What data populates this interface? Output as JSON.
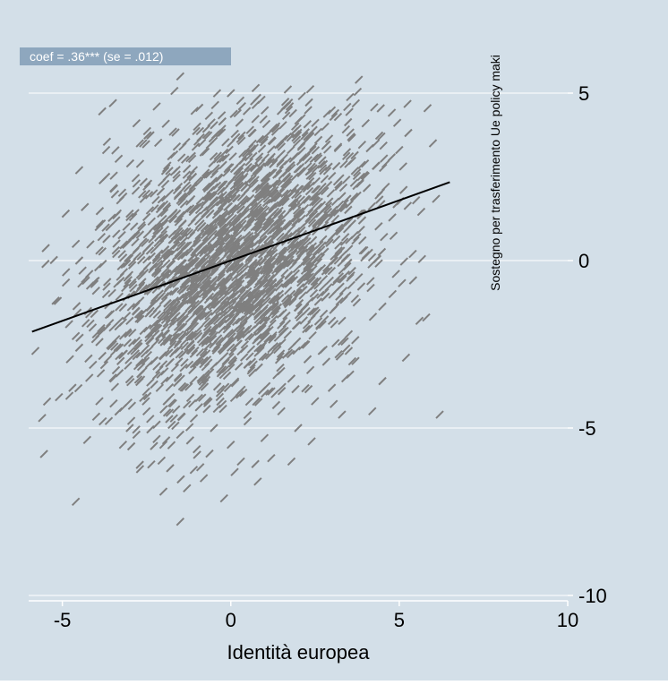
{
  "colors": {
    "background": "#d3dfe8",
    "gridline": "#ffffff",
    "axis": "#ffffff",
    "points": "#7f7f7f",
    "fit_line": "#000000",
    "annotation_box": "#8ea7be",
    "annotation_text": "#ffffff",
    "text": "#000000"
  },
  "chart_data": {
    "type": "scatter",
    "title": "",
    "xlabel": "Identità europea",
    "ylabel": "Sostegno per trasferimento Ue policy maki",
    "xlim": [
      -6,
      10
    ],
    "ylim": [
      -10,
      5
    ],
    "xticks": [
      -5,
      0,
      5,
      10
    ],
    "yticks": [
      -10,
      -5,
      0,
      5
    ],
    "x_tick_labels": [
      "-5",
      "0",
      "5",
      "10"
    ],
    "y_tick_labels": [
      "-10",
      "-5",
      "0",
      "5"
    ],
    "y_axis_position": "right",
    "grid": true,
    "annotation": "coef = .36*** (se = .012)",
    "fit_line": {
      "slope": 0.36,
      "intercept": 0,
      "x_range": [
        -5.9,
        6.5
      ]
    },
    "series": [
      {
        "marker": "dash",
        "points": [
          [
            -4.8,
            -1.9
          ],
          [
            -4.6,
            0.5
          ],
          [
            -4.5,
            -2.6
          ],
          [
            -4.5,
            0.0
          ],
          [
            -4.5,
            2.7
          ],
          [
            -4.4,
            -0.3
          ],
          [
            -4.3,
            -0.6
          ],
          [
            -4.2,
            -1.6
          ],
          [
            -4.2,
            -0.4
          ],
          [
            -4.1,
            -2.0
          ],
          [
            -4.0,
            -2.2
          ],
          [
            -4.0,
            -0.9
          ],
          [
            -3.9,
            -2.2
          ],
          [
            -3.9,
            0.3
          ],
          [
            -3.8,
            -0.1
          ],
          [
            -3.8,
            2.4
          ],
          [
            -3.7,
            2.5
          ],
          [
            -3.7,
            3.3
          ],
          [
            -3.7,
            -1.0
          ],
          [
            -3.6,
            1.0
          ],
          [
            -3.5,
            -2.5
          ],
          [
            -3.5,
            -2.0
          ],
          [
            -3.4,
            1.2
          ],
          [
            -3.4,
            0.8
          ],
          [
            -3.3,
            -2.6
          ],
          [
            -3.3,
            -1.8
          ],
          [
            -3.2,
            -4.4
          ],
          [
            -3.2,
            -1.4
          ],
          [
            -3.1,
            -1.1
          ],
          [
            -3.0,
            1.3
          ],
          [
            -3.0,
            0.6
          ],
          [
            -3.0,
            1.4
          ],
          [
            -2.9,
            1.3
          ],
          [
            -2.8,
            -5.2
          ],
          [
            -2.8,
            -1.3
          ],
          [
            -2.8,
            2.3
          ],
          [
            -2.7,
            3.5
          ],
          [
            -2.6,
            3.5
          ],
          [
            -2.6,
            -4.1
          ],
          [
            -2.6,
            -3.3
          ],
          [
            -2.5,
            1.3
          ],
          [
            -2.4,
            1.5
          ],
          [
            -2.4,
            -1.4
          ],
          [
            -2.3,
            -3.0
          ],
          [
            -2.2,
            -4.9
          ],
          [
            -2.2,
            -1.2
          ],
          [
            -2.2,
            0.9
          ],
          [
            -2.1,
            0.5
          ],
          [
            -2.1,
            -0.5
          ],
          [
            -2.1,
            -0.6
          ],
          [
            -2.0,
            -1.2
          ],
          [
            -2.0,
            -3.1
          ],
          [
            -1.9,
            2.5
          ],
          [
            -1.9,
            -4.2
          ],
          [
            -1.9,
            -4.2
          ],
          [
            -1.8,
            -0.1
          ],
          [
            -1.7,
            -2.3
          ],
          [
            -1.7,
            -2.4
          ],
          [
            -1.6,
            2.1
          ],
          [
            -1.6,
            1.4
          ],
          [
            -1.5,
            0.4
          ],
          [
            -1.5,
            1.8
          ],
          [
            -1.4,
            -1.3
          ],
          [
            -1.4,
            -3.2
          ],
          [
            -1.3,
            -4.3
          ],
          [
            -1.3,
            -0.6
          ],
          [
            -1.2,
            -4.1
          ],
          [
            -1.2,
            -2.0
          ],
          [
            -1.1,
            2.7
          ],
          [
            -1.1,
            0.0
          ],
          [
            -1.0,
            1.6
          ],
          [
            -1.0,
            -3.0
          ],
          [
            -0.9,
            -0.9
          ],
          [
            -0.9,
            1.1
          ],
          [
            -0.8,
            0.1
          ],
          [
            -0.8,
            1.5
          ],
          [
            -0.8,
            -0.8
          ],
          [
            -0.7,
            2.2
          ],
          [
            -0.7,
            -0.7
          ],
          [
            -0.6,
            -0.4
          ],
          [
            -0.6,
            2.1
          ],
          [
            -0.5,
            1.8
          ],
          [
            -0.5,
            -2.1
          ],
          [
            -0.4,
            -2.6
          ],
          [
            -0.4,
            -1.8
          ],
          [
            -0.4,
            3.8
          ],
          [
            -0.3,
            1.2
          ],
          [
            -0.3,
            -0.1
          ],
          [
            -0.2,
            -0.6
          ],
          [
            -0.2,
            1.4
          ],
          [
            -0.1,
            1.4
          ],
          [
            -0.1,
            1.6
          ],
          [
            0.0,
            -3.2
          ],
          [
            0.0,
            -2.6
          ],
          [
            0.1,
            -2.1
          ],
          [
            0.1,
            -4.1
          ],
          [
            0.2,
            0.0
          ],
          [
            0.2,
            2.4
          ],
          [
            0.3,
            0.3
          ],
          [
            0.3,
            0.3
          ],
          [
            0.4,
            2.5
          ],
          [
            0.4,
            0.3
          ],
          [
            0.5,
            -1.5
          ],
          [
            0.5,
            0.7
          ],
          [
            0.6,
            -0.7
          ],
          [
            0.6,
            -0.7
          ],
          [
            0.7,
            1.0
          ],
          [
            0.7,
            2.3
          ],
          [
            0.8,
            -1.9
          ],
          [
            0.8,
            -1.6
          ],
          [
            0.9,
            1.3
          ],
          [
            0.9,
            1.9
          ],
          [
            1.0,
            -0.3
          ],
          [
            1.0,
            3.6
          ],
          [
            1.1,
            0.0
          ],
          [
            1.1,
            -0.2
          ],
          [
            1.2,
            0.6
          ],
          [
            1.2,
            1.0
          ],
          [
            1.3,
            2.1
          ],
          [
            1.3,
            -0.1
          ],
          [
            1.4,
            -2.3
          ],
          [
            1.4,
            -1.4
          ],
          [
            1.5,
            1.8
          ],
          [
            1.5,
            0.2
          ],
          [
            1.6,
            -2.1
          ],
          [
            1.6,
            2.0
          ],
          [
            1.7,
            -1.2
          ],
          [
            1.7,
            -1.3
          ],
          [
            1.8,
            -0.6
          ],
          [
            1.8,
            -1.0
          ],
          [
            1.9,
            0.4
          ],
          [
            1.9,
            2.5
          ],
          [
            2.0,
            -1.4
          ],
          [
            2.0,
            0.4
          ],
          [
            2.1,
            1.7
          ],
          [
            2.1,
            0.9
          ],
          [
            2.2,
            -0.3
          ],
          [
            2.2,
            -1.4
          ],
          [
            2.3,
            2.3
          ],
          [
            2.3,
            3.0
          ],
          [
            2.4,
            -0.6
          ],
          [
            2.4,
            2.8
          ],
          [
            2.5,
            -1.5
          ],
          [
            2.5,
            1.9
          ],
          [
            2.6,
            3.6
          ],
          [
            2.6,
            1.6
          ],
          [
            2.7,
            -2.7
          ],
          [
            2.8,
            -1.1
          ],
          [
            2.8,
            4.0
          ],
          [
            2.9,
            -0.8
          ],
          [
            3.0,
            -1.8
          ],
          [
            3.1,
            -1.4
          ],
          [
            3.2,
            -2.8
          ],
          [
            3.3,
            -1.8
          ],
          [
            3.4,
            0.7
          ],
          [
            3.5,
            -2.2
          ],
          [
            3.6,
            1.1
          ],
          [
            3.7,
            -3.0
          ],
          [
            3.8,
            -0.5
          ],
          [
            3.9,
            1.4
          ],
          [
            -3.5,
            -3.5
          ],
          [
            -3.0,
            -5.0
          ],
          [
            -2.5,
            -4.5
          ],
          [
            -2.0,
            -5.5
          ],
          [
            -1.5,
            -5.2
          ],
          [
            -1.0,
            -5.8
          ],
          [
            -0.5,
            -5.0
          ],
          [
            0.0,
            -5.5
          ],
          [
            0.5,
            -4.8
          ],
          [
            1.0,
            -5.3
          ],
          [
            1.5,
            -4.5
          ],
          [
            2.0,
            -5.0
          ],
          [
            2.5,
            -4.2
          ],
          [
            3.0,
            -3.8
          ],
          [
            -3.8,
            -4.8
          ],
          [
            -3.2,
            -5.5
          ],
          [
            -1.8,
            -6.2
          ],
          [
            -0.8,
            -6.5
          ],
          [
            0.3,
            -6.0
          ],
          [
            1.2,
            -5.9
          ],
          [
            -4.6,
            -7.2
          ],
          [
            -2.0,
            -6.9
          ],
          [
            -1.5,
            -7.8
          ],
          [
            -0.2,
            -7.1
          ],
          [
            4.2,
            -4.5
          ],
          [
            3.5,
            -2.7
          ],
          [
            4.8,
            -1.0
          ],
          [
            5.2,
            -2.9
          ],
          [
            5.6,
            -1.8
          ],
          [
            6.2,
            -4.6
          ],
          [
            5.0,
            3.3
          ],
          [
            5.5,
            1.8
          ],
          [
            6.0,
            3.5
          ],
          [
            4.0,
            4.1
          ],
          [
            3.8,
            5.4
          ],
          [
            -1.5,
            5.5
          ],
          [
            -2.2,
            4.6
          ],
          [
            -3.5,
            4.7
          ],
          [
            -1.0,
            4.0
          ],
          [
            -5.5,
            -0.1
          ],
          [
            -5.8,
            -2.7
          ],
          [
            -5.6,
            -4.7
          ],
          [
            -4.2,
            -3.5
          ],
          [
            -3.9,
            -4.2
          ],
          [
            -2.7,
            -6.1
          ],
          [
            -1.3,
            -6.8
          ],
          [
            0.8,
            -6.6
          ],
          [
            1.8,
            -6.0
          ],
          [
            2.4,
            -5.4
          ],
          [
            3.3,
            -4.6
          ],
          [
            4.5,
            -3.6
          ],
          [
            4.9,
            -0.4
          ],
          [
            5.8,
            -1.7
          ],
          [
            5.4,
            0.2
          ],
          [
            4.6,
            2.2
          ],
          [
            4.3,
            3.5
          ],
          [
            3.1,
            4.4
          ],
          [
            1.6,
            4.6
          ],
          [
            0.2,
            4.4
          ],
          [
            -2.8,
            4.1
          ],
          [
            -4.9,
            1.4
          ],
          [
            -5.2,
            -1.2
          ],
          [
            -4.7,
            -3.8
          ],
          [
            -1.9,
            0.2
          ],
          [
            -0.5,
            0.4
          ],
          [
            1.0,
            0.8
          ],
          [
            2.3,
            0.1
          ],
          [
            3.2,
            0.3
          ],
          [
            -3.4,
            0.2
          ],
          [
            -2.6,
            -0.3
          ],
          [
            -1.2,
            -0.8
          ],
          [
            0.4,
            -1.0
          ],
          [
            1.7,
            -0.9
          ],
          [
            2.9,
            -0.3
          ],
          [
            3.7,
            0.6
          ],
          [
            -3.0,
            -1.8
          ],
          [
            -2.2,
            -2.0
          ],
          [
            -0.7,
            -2.4
          ],
          [
            0.9,
            -2.6
          ],
          [
            2.2,
            -2.5
          ]
        ]
      }
    ]
  }
}
